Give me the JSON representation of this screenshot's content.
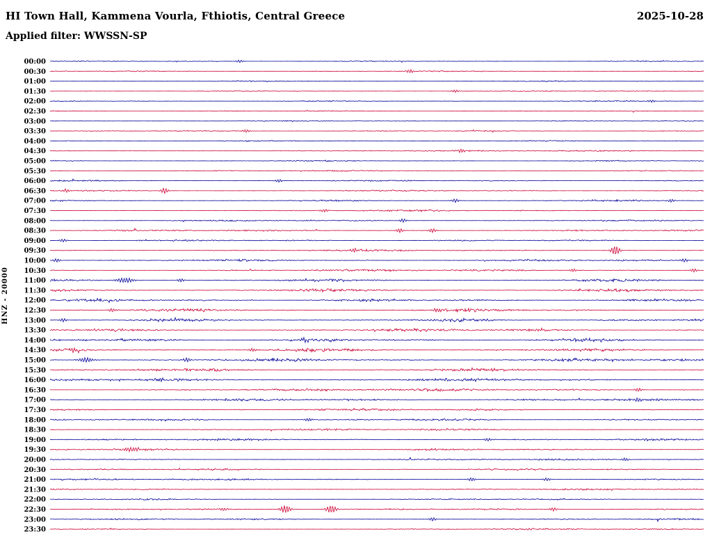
{
  "header": {
    "title": "HI Town Hall, Kammena Vourla, Fthiotis, Central Greece",
    "date": "2025-10-28",
    "filter_line": "Applied filter: WWSSN-SP"
  },
  "chart_data": {
    "type": "line",
    "subtype": "helicorder-seismogram",
    "title": "HI Town Hall, Kammena Vourla, Fthiotis, Central Greece",
    "date": "2025-10-28",
    "filter": "WWSSN-SP",
    "scale_label": "HNZ - 20000",
    "minutes_per_row": 30,
    "first_row_time": "00:00",
    "last_row_time": "23:30",
    "legend_position": "none",
    "grid": false,
    "colors": {
      "blue": "#000099",
      "red": "#cc0033"
    },
    "note": "48 alternating blue/red half-hour traces; amplitude 'a' is relative background noise level (quiet at night, strong cultural noise 10:00-17:00); 'ev' lists visible wave bursts as [x-fraction, peak-px, optional-sigma-fraction]. Largest events: 09:30 at 0.865, 22:30 at 0.36 and 0.43, 06:30 at 0.175.",
    "rows": [
      {
        "t": "00:00",
        "c": "blue",
        "a": 0.6,
        "ev": [
          [
            0.29,
            2
          ]
        ]
      },
      {
        "t": "00:30",
        "c": "red",
        "a": 0.6,
        "ev": [
          [
            0.55,
            2.5
          ]
        ]
      },
      {
        "t": "01:00",
        "c": "blue",
        "a": 0.6,
        "ev": []
      },
      {
        "t": "01:30",
        "c": "red",
        "a": 0.6,
        "ev": [
          [
            0.62,
            2
          ]
        ]
      },
      {
        "t": "02:00",
        "c": "blue",
        "a": 0.6,
        "ev": [
          [
            0.92,
            1.8
          ]
        ]
      },
      {
        "t": "02:30",
        "c": "red",
        "a": 0.6,
        "ev": []
      },
      {
        "t": "03:00",
        "c": "blue",
        "a": 0.6,
        "ev": []
      },
      {
        "t": "03:30",
        "c": "red",
        "a": 0.7,
        "ev": [
          [
            0.3,
            2.2
          ]
        ]
      },
      {
        "t": "04:00",
        "c": "blue",
        "a": 0.7,
        "ev": []
      },
      {
        "t": "04:30",
        "c": "red",
        "a": 0.7,
        "ev": [
          [
            0.63,
            2.6
          ]
        ]
      },
      {
        "t": "05:00",
        "c": "blue",
        "a": 0.7,
        "ev": []
      },
      {
        "t": "05:30",
        "c": "red",
        "a": 0.7,
        "ev": []
      },
      {
        "t": "06:00",
        "c": "blue",
        "a": 0.8,
        "ev": [
          [
            0.35,
            2.2
          ]
        ]
      },
      {
        "t": "06:30",
        "c": "red",
        "a": 0.85,
        "ev": [
          [
            0.025,
            2.5
          ],
          [
            0.175,
            4.5
          ]
        ]
      },
      {
        "t": "07:00",
        "c": "blue",
        "a": 0.9,
        "ev": [
          [
            0.62,
            2.6
          ],
          [
            0.95,
            2.2
          ]
        ]
      },
      {
        "t": "07:30",
        "c": "red",
        "a": 0.9,
        "ev": [
          [
            0.42,
            2.2
          ]
        ]
      },
      {
        "t": "08:00",
        "c": "blue",
        "a": 0.9,
        "ev": [
          [
            0.54,
            2.6
          ]
        ]
      },
      {
        "t": "08:30",
        "c": "red",
        "a": 0.95,
        "ev": [
          [
            0.535,
            3
          ],
          [
            0.585,
            3
          ]
        ]
      },
      {
        "t": "09:00",
        "c": "blue",
        "a": 0.95,
        "ev": [
          [
            0.02,
            2.2
          ]
        ]
      },
      {
        "t": "09:30",
        "c": "red",
        "a": 1.0,
        "ev": [
          [
            0.465,
            2.6
          ],
          [
            0.865,
            6.5,
            0.005
          ]
        ]
      },
      {
        "t": "10:00",
        "c": "blue",
        "a": 1.2,
        "ev": [
          [
            0.01,
            2.6
          ],
          [
            0.97,
            2.6
          ]
        ]
      },
      {
        "t": "10:30",
        "c": "red",
        "a": 1.25,
        "ev": [
          [
            0.8,
            2.2
          ],
          [
            0.985,
            2.6
          ]
        ]
      },
      {
        "t": "11:00",
        "c": "blue",
        "a": 1.45,
        "ev": [
          [
            0.115,
            3.5,
            0.01
          ],
          [
            0.2,
            2.6
          ]
        ]
      },
      {
        "t": "11:30",
        "c": "red",
        "a": 1.6,
        "ev": []
      },
      {
        "t": "12:00",
        "c": "blue",
        "a": 1.6,
        "ev": []
      },
      {
        "t": "12:30",
        "c": "red",
        "a": 1.7,
        "ev": [
          [
            0.095,
            2.6
          ],
          [
            0.59,
            2.6
          ]
        ]
      },
      {
        "t": "13:00",
        "c": "blue",
        "a": 1.7,
        "ev": [
          [
            0.02,
            2.6
          ]
        ]
      },
      {
        "t": "13:30",
        "c": "red",
        "a": 1.75,
        "ev": [
          [
            0.75,
            2.2
          ]
        ]
      },
      {
        "t": "14:00",
        "c": "blue",
        "a": 1.8,
        "ev": [
          [
            0.39,
            3
          ]
        ]
      },
      {
        "t": "14:30",
        "c": "red",
        "a": 1.8,
        "ev": [
          [
            0.035,
            2.6
          ],
          [
            0.31,
            2.2
          ]
        ]
      },
      {
        "t": "15:00",
        "c": "blue",
        "a": 1.8,
        "ev": [
          [
            0.055,
            3.5,
            0.008
          ],
          [
            0.21,
            3
          ]
        ]
      },
      {
        "t": "15:30",
        "c": "red",
        "a": 1.75,
        "ev": []
      },
      {
        "t": "16:00",
        "c": "blue",
        "a": 1.7,
        "ev": [
          [
            0.17,
            2.2
          ]
        ]
      },
      {
        "t": "16:30",
        "c": "red",
        "a": 1.6,
        "ev": [
          [
            0.9,
            2.6
          ]
        ]
      },
      {
        "t": "17:00",
        "c": "blue",
        "a": 1.5,
        "ev": [
          [
            0.9,
            3
          ]
        ]
      },
      {
        "t": "17:30",
        "c": "red",
        "a": 1.35,
        "ev": []
      },
      {
        "t": "18:00",
        "c": "blue",
        "a": 1.25,
        "ev": [
          [
            0.395,
            2.2
          ]
        ]
      },
      {
        "t": "18:30",
        "c": "red",
        "a": 1.15,
        "ev": []
      },
      {
        "t": "19:00",
        "c": "blue",
        "a": 1.1,
        "ev": [
          [
            0.67,
            2.2
          ]
        ]
      },
      {
        "t": "19:30",
        "c": "red",
        "a": 1.05,
        "ev": [
          [
            0.125,
            3,
            0.008
          ]
        ]
      },
      {
        "t": "20:00",
        "c": "blue",
        "a": 1.0,
        "ev": [
          [
            0.88,
            2.2
          ]
        ]
      },
      {
        "t": "20:30",
        "c": "red",
        "a": 1.0,
        "ev": []
      },
      {
        "t": "21:00",
        "c": "blue",
        "a": 1.0,
        "ev": [
          [
            0.645,
            2.6
          ],
          [
            0.76,
            2.2
          ]
        ]
      },
      {
        "t": "21:30",
        "c": "red",
        "a": 0.95,
        "ev": []
      },
      {
        "t": "22:00",
        "c": "blue",
        "a": 0.9,
        "ev": []
      },
      {
        "t": "22:30",
        "c": "red",
        "a": 0.95,
        "ev": [
          [
            0.265,
            2.6
          ],
          [
            0.36,
            5.5,
            0.006
          ],
          [
            0.43,
            5.5,
            0.006
          ],
          [
            0.77,
            2.6
          ]
        ]
      },
      {
        "t": "23:00",
        "c": "blue",
        "a": 0.85,
        "ev": [
          [
            0.585,
            2.6
          ]
        ]
      },
      {
        "t": "23:30",
        "c": "red",
        "a": 0.8,
        "ev": []
      }
    ]
  }
}
